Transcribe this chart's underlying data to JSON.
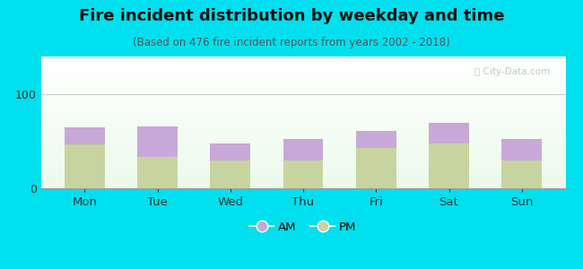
{
  "days": [
    "Mon",
    "Tue",
    "Wed",
    "Thu",
    "Fri",
    "Sat",
    "Sun"
  ],
  "pm_values": [
    47,
    33,
    30,
    30,
    43,
    48,
    30
  ],
  "am_values": [
    18,
    33,
    18,
    22,
    18,
    22,
    22
  ],
  "am_color": "#c8a8d8",
  "pm_color": "#c8d4a0",
  "title": "Fire incident distribution by weekday and time",
  "subtitle": "(Based on 476 fire incident reports from years 2002 - 2018)",
  "ylim": [
    0,
    140
  ],
  "yticks": [
    0,
    100
  ],
  "bg_color": "#00e0ee",
  "title_fontsize": 13,
  "subtitle_fontsize": 8.5,
  "watermark": "Ⓣ City-Data.com",
  "bar_width": 0.55
}
